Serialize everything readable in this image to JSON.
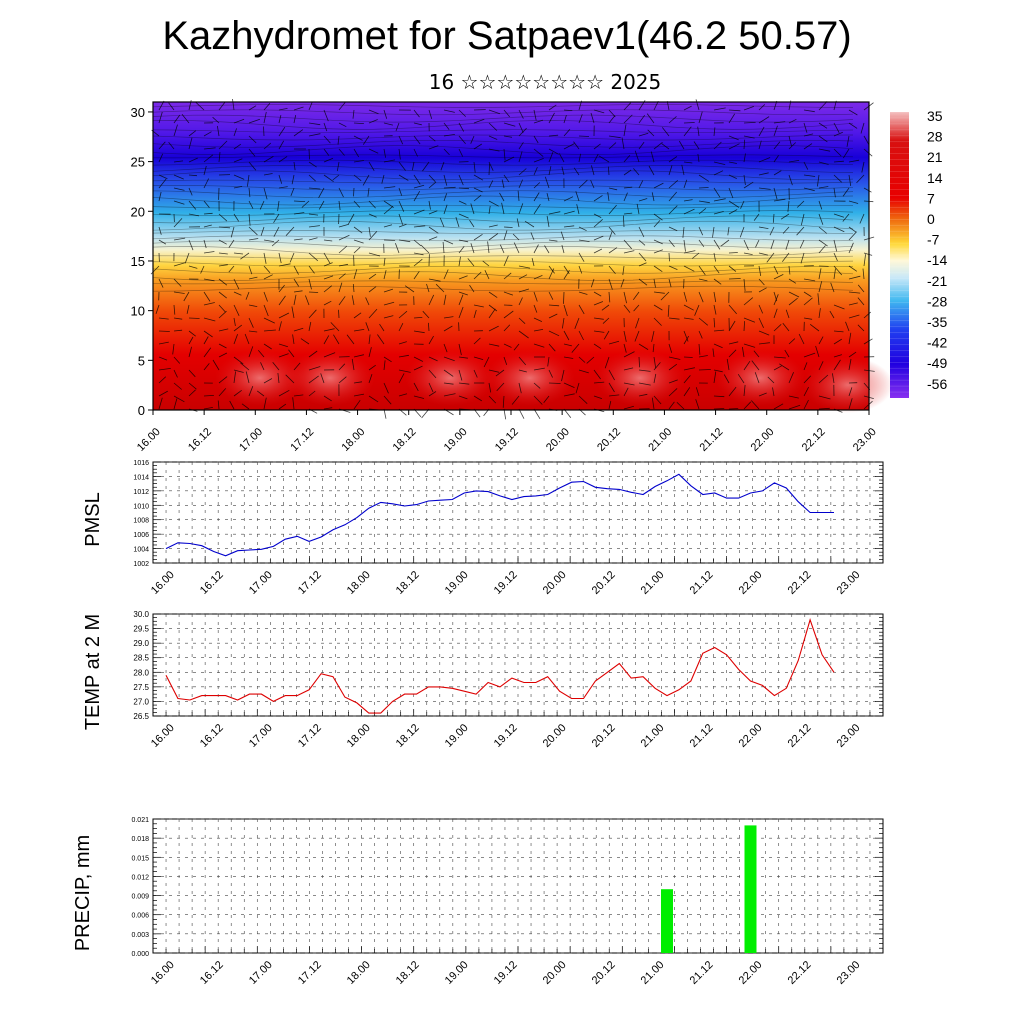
{
  "header": {
    "title": "Kazhydromet for Satpaev1(46.2 50.57)",
    "subtitle": "16 ☆☆☆☆☆☆☆☆ 2025"
  },
  "colors": {
    "pmsl_line": "#0000cc",
    "temp_line": "#dd0000",
    "precip_bar": "#00ee00",
    "grid": "#444444"
  },
  "chart_data": [
    {
      "id": "cross-section",
      "type": "heatmap",
      "title": "",
      "xlabel": "",
      "ylabel": "",
      "x_ticks": [
        "16.00",
        "16.12",
        "17.00",
        "17.12",
        "18.00",
        "18.12",
        "19.00",
        "19.12",
        "20.00",
        "20.12",
        "21.00",
        "21.12",
        "22.00",
        "22.12",
        "23.00"
      ],
      "y_ticks": [
        "0",
        "5",
        "10",
        "15",
        "20",
        "25",
        "30"
      ],
      "ylim": [
        0,
        31
      ],
      "colorbar": {
        "labels": [
          "35",
          "28",
          "21",
          "14",
          "7",
          "0",
          "-7",
          "-14",
          "-21",
          "-28",
          "-35",
          "-42",
          "-49",
          "-56"
        ],
        "range": [
          -60,
          38
        ]
      },
      "overlay": "wind vectors"
    },
    {
      "id": "pmsl",
      "type": "line",
      "ylabel": "PMSL",
      "ylim": [
        1002,
        1016
      ],
      "y_ticks": [
        "1002",
        "1004",
        "1006",
        "1008",
        "1010",
        "1012",
        "1014",
        "1016"
      ],
      "x_ticks": [
        "16.00",
        "16.12",
        "17.00",
        "17.12",
        "18.00",
        "18.12",
        "19.00",
        "19.12",
        "20.00",
        "20.12",
        "21.00",
        "21.12",
        "22.00",
        "22.12",
        "23.00"
      ],
      "x_step_hours": 3,
      "values": [
        1004.0,
        1004.8,
        1004.7,
        1004.4,
        1003.6,
        1003.0,
        1003.7,
        1003.8,
        1003.9,
        1004.3,
        1005.3,
        1005.7,
        1005.0,
        1005.6,
        1006.6,
        1007.3,
        1008.3,
        1009.6,
        1010.4,
        1010.2,
        1009.9,
        1010.1,
        1010.6,
        1010.7,
        1010.8,
        1011.7,
        1012.0,
        1011.9,
        1011.3,
        1010.8,
        1011.2,
        1011.3,
        1011.5,
        1012.4,
        1013.2,
        1013.3,
        1012.5,
        1012.3,
        1012.2,
        1011.8,
        1011.5,
        1012.6,
        1013.4,
        1014.3,
        1012.7,
        1011.5,
        1011.7,
        1011.0,
        1011.0,
        1011.7,
        1012.0,
        1013.1,
        1012.4,
        1010.5,
        1009.0,
        1009.0,
        1009.0
      ],
      "line_end_index": 56
    },
    {
      "id": "temp",
      "type": "line",
      "ylabel": "TEMP at 2 M",
      "ylim": [
        26.5,
        30.0
      ],
      "y_ticks": [
        "26.5",
        "27.0",
        "27.5",
        "28.0",
        "28.5",
        "29.0",
        "29.5",
        "30.0"
      ],
      "x_ticks": [
        "16.00",
        "16.12",
        "17.00",
        "17.12",
        "18.00",
        "18.12",
        "19.00",
        "19.12",
        "20.00",
        "20.12",
        "21.00",
        "21.12",
        "22.00",
        "22.12",
        "23.00"
      ],
      "x_step_hours": 3,
      "values": [
        27.9,
        27.1,
        27.05,
        27.2,
        27.2,
        27.2,
        27.05,
        27.25,
        27.25,
        27.0,
        27.2,
        27.2,
        27.4,
        27.95,
        27.85,
        27.15,
        26.95,
        26.6,
        26.6,
        27.0,
        27.25,
        27.25,
        27.5,
        27.5,
        27.45,
        27.35,
        27.25,
        27.65,
        27.5,
        27.8,
        27.65,
        27.65,
        27.85,
        27.35,
        27.1,
        27.1,
        27.7,
        28.0,
        28.3,
        27.8,
        27.85,
        27.45,
        27.2,
        27.4,
        27.7,
        28.65,
        28.85,
        28.6,
        28.1,
        27.7,
        27.55,
        27.2,
        27.45,
        28.4,
        29.8,
        28.6,
        28.0
      ]
    },
    {
      "id": "precip",
      "type": "bar",
      "ylabel": "PRECIP, mm",
      "ylim": [
        0,
        0.021
      ],
      "y_ticks": [
        "0.000",
        "0.003",
        "0.006",
        "0.009",
        "0.012",
        "0.015",
        "0.018",
        "0.021"
      ],
      "x_ticks": [
        "16.00",
        "16.12",
        "17.00",
        "17.12",
        "18.00",
        "18.12",
        "19.00",
        "19.12",
        "20.00",
        "20.12",
        "21.00",
        "21.12",
        "22.00",
        "22.12",
        "23.00"
      ],
      "bars": [
        {
          "hour_index": 42,
          "value": 0.01
        },
        {
          "hour_index": 49,
          "value": 0.02
        }
      ]
    }
  ]
}
